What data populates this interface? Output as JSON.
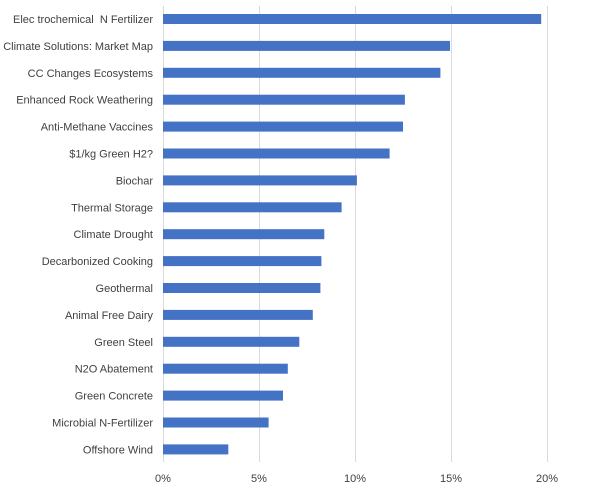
{
  "chart_data": {
    "type": "bar",
    "orientation": "horizontal",
    "categories": [
      "Elec trochemical  N Fertilizer",
      "Climate Solutions: Market Map",
      "CC Changes Ecosystems",
      "Enhanced Rock Weathering",
      "Anti-Methane Vaccines",
      "$1/kg Green H2?",
      "Biochar",
      "Thermal Storage",
      "Climate Drought",
      "Decarbonized Cooking",
      "Geothermal",
      "Animal Free Dairy",
      "Green Steel",
      "N2O Abatement",
      "Green Concrete",
      "Microbial N-Fertilizer",
      "Offshore Wind"
    ],
    "values": [
      19.7,
      14.95,
      14.45,
      12.6,
      12.5,
      11.8,
      10.1,
      9.3,
      8.4,
      8.25,
      8.2,
      7.8,
      7.1,
      6.5,
      6.25,
      5.5,
      3.4
    ],
    "xlim": [
      0,
      20
    ],
    "ticks": [
      "0%",
      "5%",
      "10%",
      "15%",
      "20%"
    ],
    "tick_values": [
      0,
      5,
      10,
      15,
      20
    ],
    "bar_color": "#4472C4",
    "grid": "vertical",
    "grid_color": "#d9d9d9",
    "title": "",
    "xlabel": "",
    "ylabel": ""
  }
}
